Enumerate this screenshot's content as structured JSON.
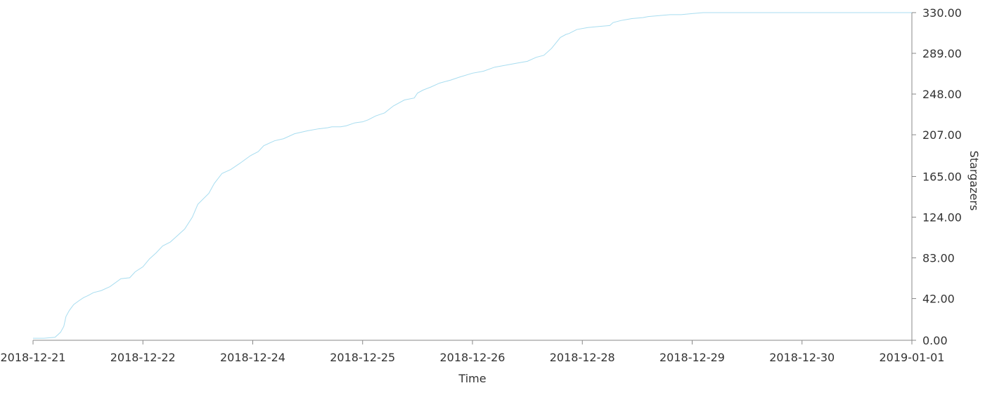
{
  "chart_data": {
    "type": "line",
    "title": "",
    "xlabel": "Time",
    "ylabel": "Stargazers",
    "x_ticks": [
      "2018-12-21",
      "2018-12-22",
      "2018-12-24",
      "2018-12-25",
      "2018-12-26",
      "2018-12-28",
      "2018-12-29",
      "2018-12-30",
      "2019-01-01"
    ],
    "y_ticks": [
      "0.00",
      "42.00",
      "83.00",
      "124.00",
      "165.00",
      "207.00",
      "248.00",
      "289.00",
      "330.00"
    ],
    "ylim": [
      0,
      330
    ],
    "y_axis_side": "right",
    "grid": false,
    "legend": "none",
    "series_color": "#a8ddf0",
    "series": [
      {
        "x": [
          0,
          0.1,
          0.2,
          0.25,
          0.28,
          0.3,
          0.33,
          0.37,
          0.42,
          0.46,
          0.5,
          0.55,
          0.62,
          0.7,
          0.8,
          0.88,
          0.93,
          1.0,
          1.06,
          1.12,
          1.18,
          1.25,
          1.3,
          1.38,
          1.45,
          1.5,
          1.6,
          1.65,
          1.72,
          1.8,
          1.88,
          1.98,
          2.05,
          2.1,
          2.2,
          2.28,
          2.38,
          2.5,
          2.6,
          2.68,
          2.72,
          2.8,
          2.85,
          2.93,
          3.0,
          3.05,
          3.12,
          3.2,
          3.28,
          3.38,
          3.47,
          3.5,
          3.55,
          3.62,
          3.7,
          3.8,
          3.88,
          4.0,
          4.1,
          4.2,
          4.3,
          4.4,
          4.5,
          4.58,
          4.65,
          4.72,
          4.8,
          4.85,
          4.88,
          4.95,
          5.05,
          5.15,
          5.25,
          5.28,
          5.35,
          5.45,
          5.55,
          5.6,
          5.7,
          5.8,
          5.9,
          6.0,
          6.1,
          6.2,
          6.3,
          6.45,
          6.55,
          6.65,
          6.72,
          6.8,
          6.85,
          6.9,
          6.95,
          7.0,
          7.05,
          7.1,
          7.2,
          7.3,
          7.4,
          7.5,
          7.55,
          7.62,
          7.7,
          7.8,
          7.9,
          8.0
        ],
        "values": [
          2,
          2,
          3,
          8,
          14,
          24,
          30,
          36,
          40,
          43,
          45,
          48,
          50,
          54,
          62,
          63,
          69,
          74,
          82,
          88,
          95,
          99,
          104,
          112,
          124,
          137,
          148,
          158,
          168,
          172,
          178,
          186,
          190,
          196,
          201,
          203,
          208,
          211,
          213,
          214,
          215,
          215,
          216,
          219,
          220,
          222,
          226,
          229,
          236,
          242,
          244,
          249,
          252,
          255,
          259,
          262,
          265,
          269,
          271,
          275,
          277,
          279,
          281,
          285,
          287,
          294,
          305,
          308,
          309,
          313,
          315,
          316,
          317,
          320,
          322,
          324,
          325,
          326,
          327,
          328,
          328,
          329,
          330,
          330,
          330,
          330,
          330,
          330,
          330,
          330,
          330,
          330,
          330,
          330,
          330,
          330,
          330,
          330,
          330,
          330,
          330,
          330,
          330,
          330,
          330,
          330
        ]
      }
    ]
  }
}
